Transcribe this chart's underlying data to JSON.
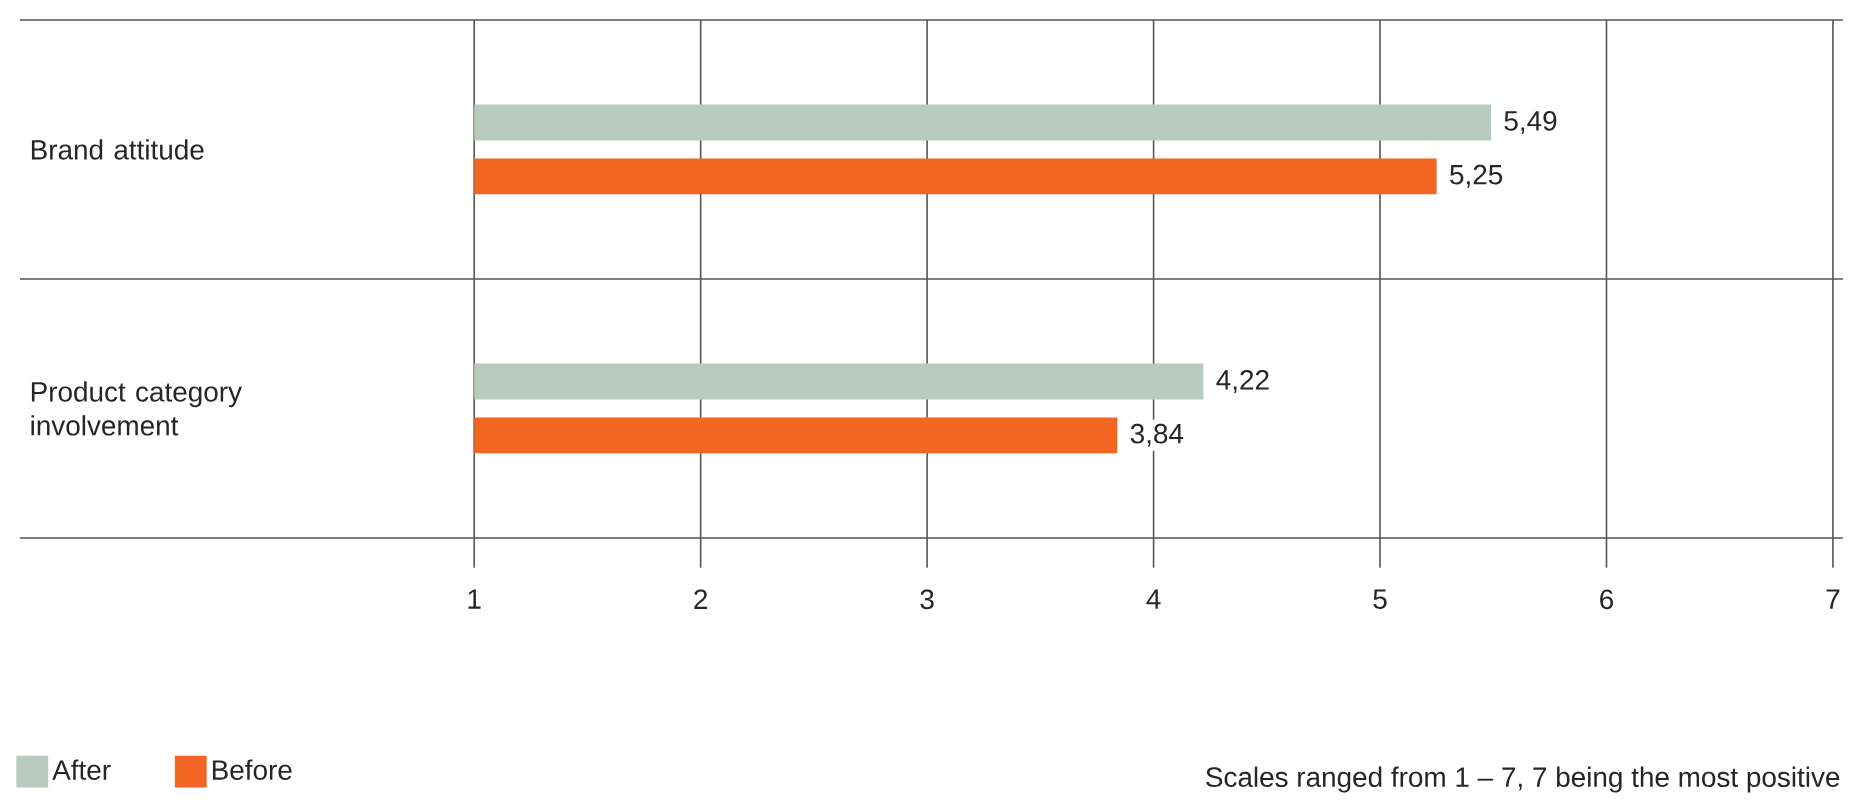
{
  "chart_data": {
    "type": "bar",
    "orientation": "horizontal",
    "categories": [
      "Brand attitude",
      "Product category\ninvolvement"
    ],
    "series": [
      {
        "name": "After",
        "color": "#b8cbbe",
        "values": [
          5.49,
          4.22
        ],
        "value_labels": [
          "5,49",
          "4,22"
        ]
      },
      {
        "name": "Before",
        "color": "#f26522",
        "values": [
          5.25,
          3.84
        ],
        "value_labels": [
          "5,25",
          "3,84"
        ]
      }
    ],
    "xlim": [
      1,
      7
    ],
    "xticks": [
      1,
      2,
      3,
      4,
      5,
      6,
      7
    ],
    "grid": "x",
    "legend": "bottom left",
    "annotations": [
      "Scales ranged from 1 – 7, 7 being the most positive"
    ]
  }
}
